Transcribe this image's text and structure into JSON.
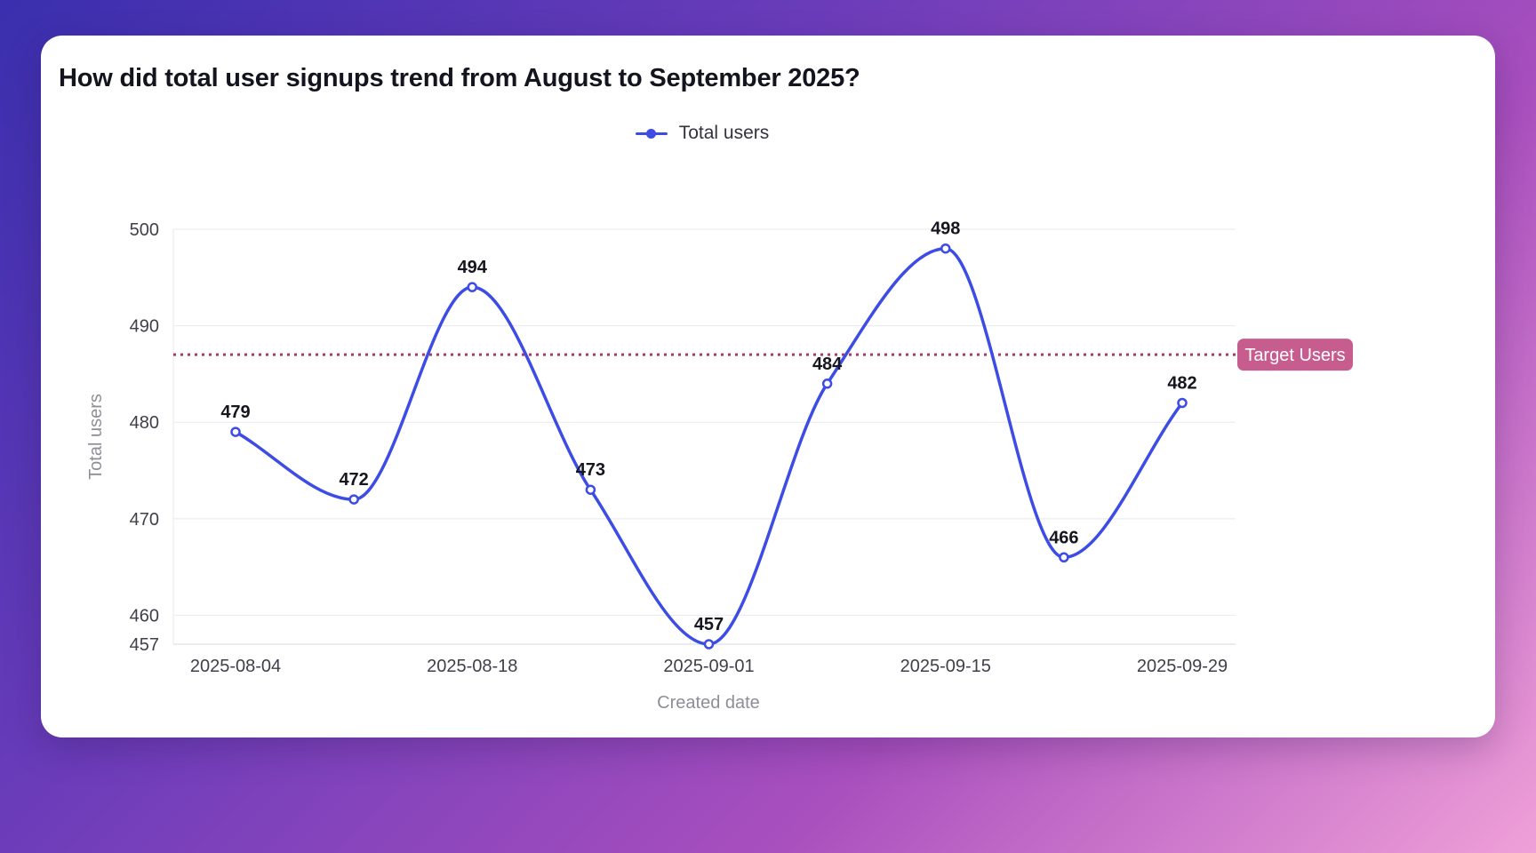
{
  "page": {
    "title": "How did total user signups trend from August to September 2025?"
  },
  "legend": {
    "position": "top",
    "items": [
      {
        "label": "Total users",
        "color": "#3c4ce4"
      }
    ]
  },
  "chart_data": {
    "type": "line",
    "title": "How did total user signups trend from August to September 2025?",
    "xlabel": "Created date",
    "ylabel": "Total users",
    "categories": [
      "2025-08-04",
      "2025-08-11",
      "2025-08-18",
      "2025-08-25",
      "2025-09-01",
      "2025-09-08",
      "2025-09-15",
      "2025-09-22",
      "2025-09-29"
    ],
    "series": [
      {
        "name": "Total users",
        "values": [
          479,
          472,
          494,
          473,
          457,
          484,
          498,
          466,
          482
        ],
        "color": "#3c4ce4",
        "point_style": "open-circle",
        "curve": "smooth"
      }
    ],
    "data_labels": true,
    "ylim": [
      457,
      500
    ],
    "yticks": [
      457,
      460,
      470,
      480,
      490,
      500
    ],
    "xtick_labels": [
      "2025-08-04",
      "2025-08-18",
      "2025-09-01",
      "2025-09-15",
      "2025-09-29"
    ],
    "grid": "horizontal",
    "legend_position": "top",
    "annotations": [
      {
        "type": "horizontal-line",
        "value": 487,
        "label": "Target Users",
        "style": "dotted",
        "line_color": "#ab3963",
        "badge_color": "#c75d8f",
        "badge_text_color": "#ffffff"
      }
    ]
  },
  "colors": {
    "background_gradient": [
      "#3a2fae",
      "#6b3cba",
      "#a94fbe",
      "#f0a0d8"
    ],
    "card": "#ffffff",
    "grid": "#e8e8ef",
    "axis_line": "#d7d7df",
    "tick_text": "#3f3f49",
    "axis_title_text": "#8e8e98",
    "label_text": "#16161f",
    "title_text": "#14141e"
  }
}
